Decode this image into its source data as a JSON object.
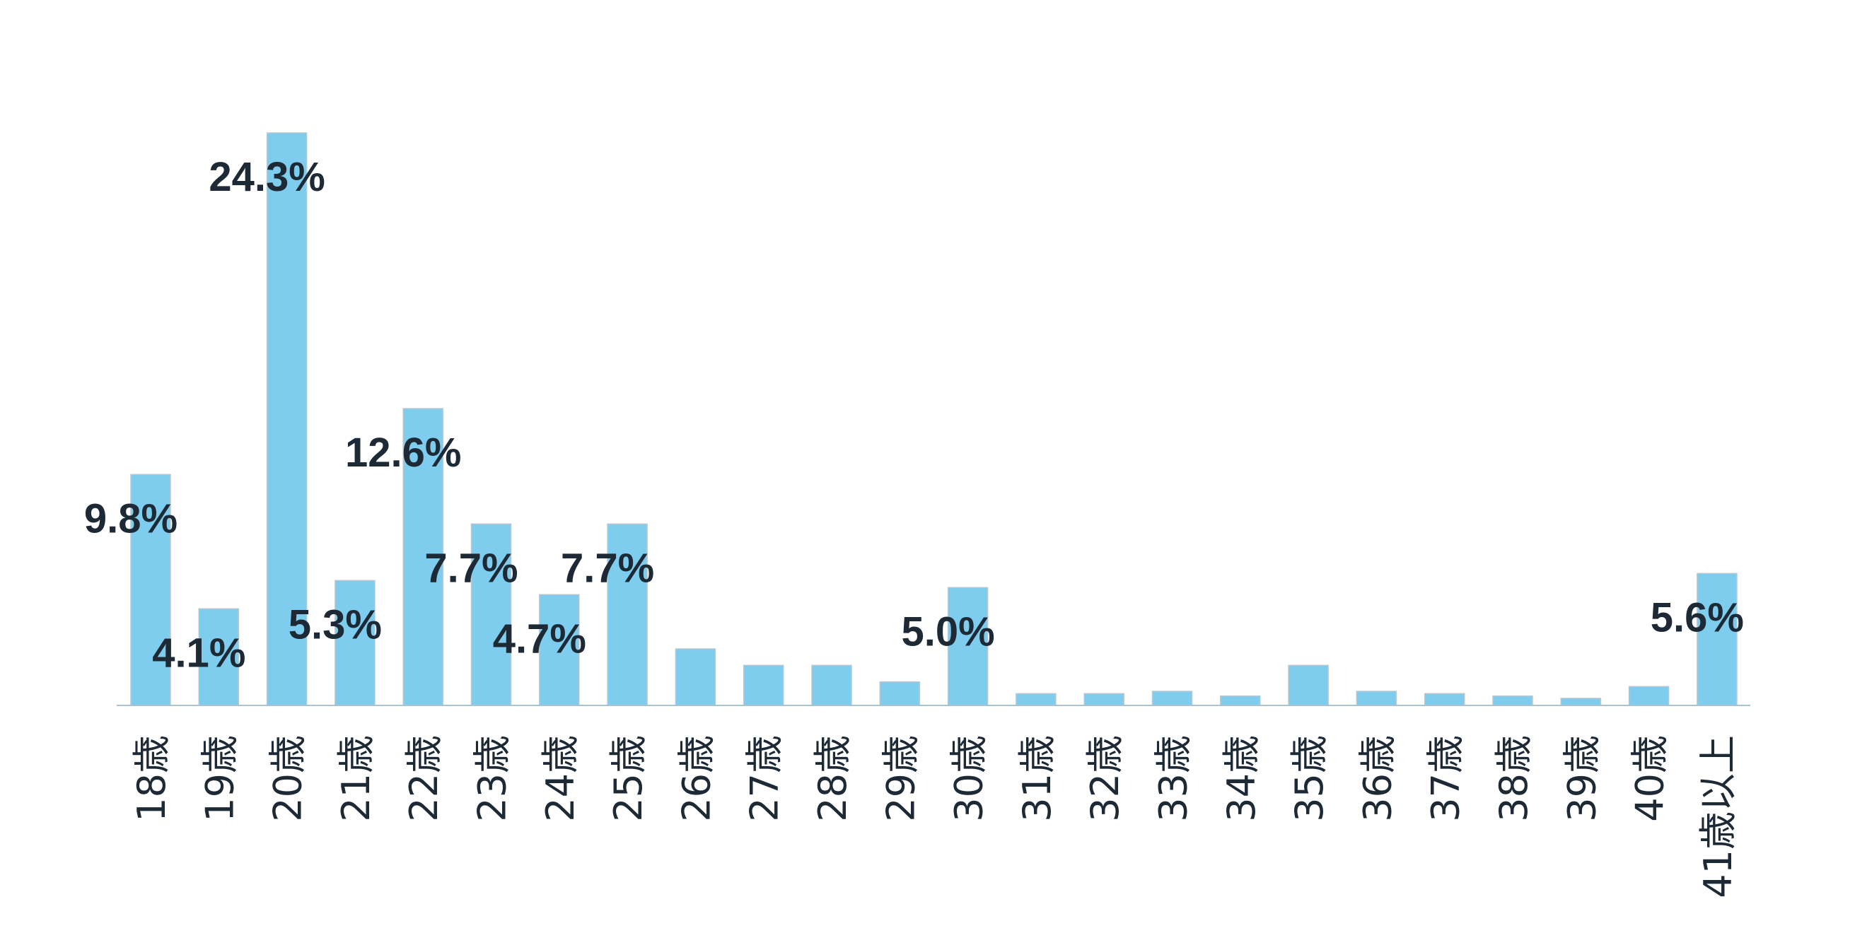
{
  "chart_data": {
    "type": "bar",
    "categories": [
      "18歳",
      "19歳",
      "20歳",
      "21歳",
      "22歳",
      "23歳",
      "24歳",
      "25歳",
      "26歳",
      "27歳",
      "28歳",
      "29歳",
      "30歳",
      "31歳",
      "32歳",
      "33歳",
      "34歳",
      "35歳",
      "36歳",
      "37歳",
      "38歳",
      "39歳",
      "40歳",
      "41歳以上"
    ],
    "values": [
      9.8,
      4.1,
      24.3,
      5.3,
      12.6,
      7.7,
      4.7,
      7.7,
      2.4,
      1.7,
      1.7,
      1.0,
      5.0,
      0.5,
      0.5,
      0.6,
      0.4,
      1.7,
      0.6,
      0.5,
      0.4,
      0.3,
      0.8,
      5.6
    ],
    "series": [
      {
        "values": [
          9.8,
          4.1,
          24.3,
          5.3,
          12.6,
          7.7,
          4.7,
          7.7,
          2.4,
          1.7,
          1.7,
          1.0,
          5.0,
          0.5,
          0.5,
          0.6,
          0.4,
          1.7,
          0.6,
          0.5,
          0.4,
          0.3,
          0.8,
          5.6
        ]
      }
    ],
    "data_labels": [
      "9.8%",
      "4.1%",
      "24.3%",
      "5.3%",
      "12.6%",
      "7.7%",
      "4.7%",
      "7.7%",
      "",
      "",
      "",
      "",
      "5.0%",
      "",
      "",
      "",
      "",
      "",
      "",
      "",
      "",
      "",
      "",
      "5.6%"
    ],
    "title": "",
    "xlabel": "",
    "ylabel": "",
    "ylim": [
      0,
      26
    ],
    "grid": false,
    "legend": "none",
    "colors": {
      "bar": "#7ecdee",
      "bar_edge": "#b8c7d1",
      "label": "#1d2a36",
      "axis": "#a9c3d3"
    }
  }
}
